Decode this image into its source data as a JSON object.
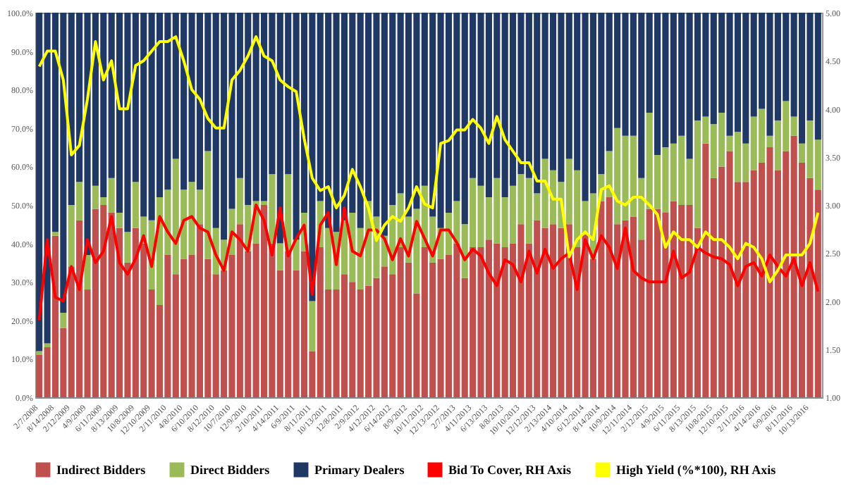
{
  "chart_data": {
    "type": "bar",
    "stacked": true,
    "categories": [
      "2/7/2008",
      null,
      "8/14/2008",
      null,
      "2/12/2009",
      null,
      "4/9/2009",
      null,
      "6/11/2009",
      null,
      "8/13/2009",
      null,
      "10/8/2009",
      null,
      "12/10/2009",
      null,
      "2/11/2010",
      null,
      "4/8/2010",
      null,
      "6/10/2010",
      null,
      "8/12/2010",
      null,
      "10/7/2010",
      null,
      "12/9/2010",
      null,
      "2/10/2011",
      null,
      "4/14/2011",
      null,
      "6/9/2011",
      null,
      "8/11/2011",
      null,
      "10/13/2011",
      null,
      "12/8/2011",
      null,
      "2/9/2012",
      null,
      "4/12/2012",
      null,
      "6/14/2012",
      null,
      "8/9/2012",
      null,
      "10/11/2012",
      null,
      "12/13/2012",
      null,
      "2/7/2013",
      null,
      "4/11/2013",
      null,
      "6/13/2013",
      null,
      "8/8/2013",
      null,
      "10/10/2013",
      null,
      "12/12/2013",
      null,
      "2/13/2014",
      null,
      "4/10/2014",
      null,
      "6/12/2014",
      null,
      "8/14/2014",
      null,
      "10/9/2014",
      null,
      "12/11/2014",
      null,
      "2/12/2015",
      null,
      "4/9/2015",
      null,
      "6/11/2015",
      null,
      "8/13/2015",
      null,
      "10/8/2015",
      null,
      "12/10/2015",
      null,
      "2/11/2016",
      null,
      "4/14/2016",
      null,
      "6/9/2016",
      null,
      "8/11/2016",
      null,
      "10/13/2016",
      null
    ],
    "series": [
      {
        "name": "Indirect Bidders",
        "color": "#c0504d",
        "values": [
          11,
          13,
          42,
          18,
          34,
          46,
          28,
          49,
          50,
          48,
          44,
          35,
          44,
          40,
          28,
          24,
          37,
          32,
          36,
          37,
          45,
          36,
          32,
          33,
          37,
          45,
          38,
          40,
          50,
          40,
          33,
          38,
          33,
          38,
          12,
          39,
          28,
          28,
          32,
          30,
          28,
          29,
          31,
          34,
          32,
          39,
          35,
          27,
          39,
          35,
          36,
          37,
          40,
          31,
          39,
          39,
          41,
          40,
          39,
          40,
          45,
          40,
          46,
          44,
          45,
          44,
          45,
          39,
          43,
          36,
          51,
          52,
          45,
          46,
          47,
          41,
          49,
          49,
          48,
          51,
          50,
          50,
          44,
          66,
          57,
          60,
          64,
          56,
          56,
          59,
          61,
          65,
          59,
          64,
          68,
          61,
          57,
          54
        ]
      },
      {
        "name": "Direct Bidders",
        "color": "#9bbb59",
        "values": [
          1,
          1,
          1,
          4,
          16,
          10,
          9,
          6,
          2,
          9,
          4,
          8,
          12,
          7,
          18,
          28,
          17,
          30,
          18,
          19,
          9,
          28,
          12,
          8,
          12,
          12,
          12,
          11,
          1,
          18,
          7,
          20,
          8,
          10,
          13,
          12,
          16,
          15,
          14,
          18,
          16,
          22,
          16,
          8,
          18,
          14,
          12,
          22,
          16,
          12,
          8,
          11,
          11,
          14,
          18,
          16,
          11,
          17,
          13,
          15,
          13,
          17,
          7,
          18,
          14,
          12,
          17,
          20,
          8,
          17,
          7,
          12,
          25,
          22,
          21,
          16,
          25,
          14,
          17,
          15,
          18,
          12,
          28,
          7,
          14,
          14,
          4,
          13,
          10,
          14,
          14,
          3,
          13,
          13,
          5,
          5,
          15,
          13
        ]
      },
      {
        "name": "Primary Dealers",
        "color": "#1f3864",
        "values": [
          88,
          86,
          57,
          78,
          50,
          44,
          63,
          45,
          48,
          43,
          52,
          57,
          44,
          53,
          54,
          48,
          46,
          38,
          46,
          44,
          46,
          36,
          56,
          59,
          51,
          43,
          50,
          49,
          49,
          42,
          60,
          42,
          59,
          52,
          75,
          49,
          56,
          57,
          54,
          52,
          56,
          49,
          53,
          58,
          50,
          47,
          53,
          51,
          45,
          53,
          56,
          52,
          49,
          55,
          43,
          45,
          48,
          43,
          48,
          45,
          42,
          43,
          47,
          38,
          41,
          44,
          38,
          41,
          49,
          47,
          42,
          36,
          30,
          32,
          32,
          43,
          26,
          37,
          35,
          34,
          32,
          38,
          28,
          27,
          29,
          26,
          32,
          31,
          34,
          27,
          25,
          32,
          28,
          23,
          27,
          34,
          28,
          33
        ]
      },
      {
        "name": "Bid To Cover, RH Axis",
        "type": "line",
        "axis": "y2",
        "color": "#ff0000",
        "values": [
          1.8,
          2.64,
          2.04,
          2.0,
          2.36,
          2.12,
          2.64,
          2.4,
          2.52,
          2.88,
          2.4,
          2.28,
          2.44,
          2.68,
          2.36,
          2.88,
          2.72,
          2.6,
          2.84,
          2.88,
          2.76,
          2.72,
          2.48,
          2.32,
          2.72,
          2.64,
          2.52,
          3.0,
          2.84,
          2.48,
          2.97,
          2.47,
          2.65,
          2.79,
          2.07,
          2.79,
          2.92,
          2.38,
          2.97,
          2.52,
          2.47,
          2.74,
          2.74,
          2.65,
          2.43,
          2.65,
          2.47,
          2.83,
          2.65,
          2.47,
          2.74,
          2.74,
          2.61,
          2.43,
          2.54,
          2.47,
          2.29,
          2.16,
          2.43,
          2.38,
          2.2,
          2.52,
          2.29,
          2.54,
          2.34,
          2.44,
          2.5,
          2.12,
          2.64,
          2.44,
          2.68,
          2.56,
          2.34,
          2.76,
          2.32,
          2.24,
          2.2,
          2.2,
          2.2,
          2.52,
          2.24,
          2.3,
          2.56,
          2.5,
          2.46,
          2.44,
          2.38,
          2.16,
          2.36,
          2.4,
          2.26,
          2.48,
          2.36,
          2.26,
          2.44,
          2.16,
          2.4,
          2.1
        ]
      },
      {
        "name": "High Yield (%*100), RH Axis",
        "type": "line",
        "axis": "y2",
        "color": "#ffff00",
        "values": [
          4.44,
          4.6,
          4.6,
          4.3,
          3.52,
          3.62,
          4.1,
          4.7,
          4.3,
          4.5,
          4.0,
          4.0,
          4.45,
          4.5,
          4.6,
          4.7,
          4.7,
          4.75,
          4.5,
          4.2,
          4.1,
          3.9,
          3.8,
          3.8,
          4.3,
          4.4,
          4.55,
          4.75,
          4.55,
          4.5,
          4.3,
          4.23,
          4.18,
          3.69,
          3.28,
          3.15,
          3.19,
          2.97,
          3.1,
          3.37,
          3.19,
          2.97,
          2.63,
          2.79,
          2.88,
          2.83,
          2.97,
          3.19,
          3.01,
          2.97,
          3.64,
          3.67,
          3.78,
          3.78,
          3.89,
          3.8,
          3.64,
          3.92,
          3.68,
          3.56,
          3.44,
          3.44,
          3.25,
          3.25,
          3.06,
          3.06,
          2.46,
          2.64,
          2.72,
          2.64,
          3.16,
          3.2,
          3.04,
          3.0,
          3.08,
          3.08,
          3.0,
          2.9,
          2.56,
          2.72,
          2.64,
          2.64,
          2.56,
          2.72,
          2.64,
          2.64,
          2.56,
          2.44,
          2.6,
          2.56,
          2.44,
          2.2,
          2.32,
          2.48,
          2.48,
          2.48,
          2.6,
          2.92
        ]
      }
    ],
    "ylim": [
      0,
      100
    ],
    "yticks": [
      {
        "value": 0,
        "label": "0.0%"
      },
      {
        "value": 10,
        "label": "10.0%"
      },
      {
        "value": 20,
        "label": "20.0%"
      },
      {
        "value": 30,
        "label": "30.0%"
      },
      {
        "value": 40,
        "label": "40.0%"
      },
      {
        "value": 50,
        "label": "50.0%"
      },
      {
        "value": 60,
        "label": "60.0%"
      },
      {
        "value": 70,
        "label": "70.0%"
      },
      {
        "value": 80,
        "label": "80.0%"
      },
      {
        "value": 90,
        "label": "90.0%"
      },
      {
        "value": 100,
        "label": "100.0%"
      }
    ],
    "y2lim": [
      1,
      5
    ],
    "y2ticks": [
      {
        "value": 1,
        "label": "1.00"
      },
      {
        "value": 1.5,
        "label": "1.50"
      },
      {
        "value": 2,
        "label": "2.00"
      },
      {
        "value": 2.5,
        "label": "2.50"
      },
      {
        "value": 3,
        "label": "3.00"
      },
      {
        "value": 3.5,
        "label": "3.50"
      },
      {
        "value": 4,
        "label": "4.00"
      },
      {
        "value": 4.5,
        "label": "4.50"
      },
      {
        "value": 5,
        "label": "5.00"
      }
    ],
    "legend": "bottom",
    "line_style": "solid"
  }
}
